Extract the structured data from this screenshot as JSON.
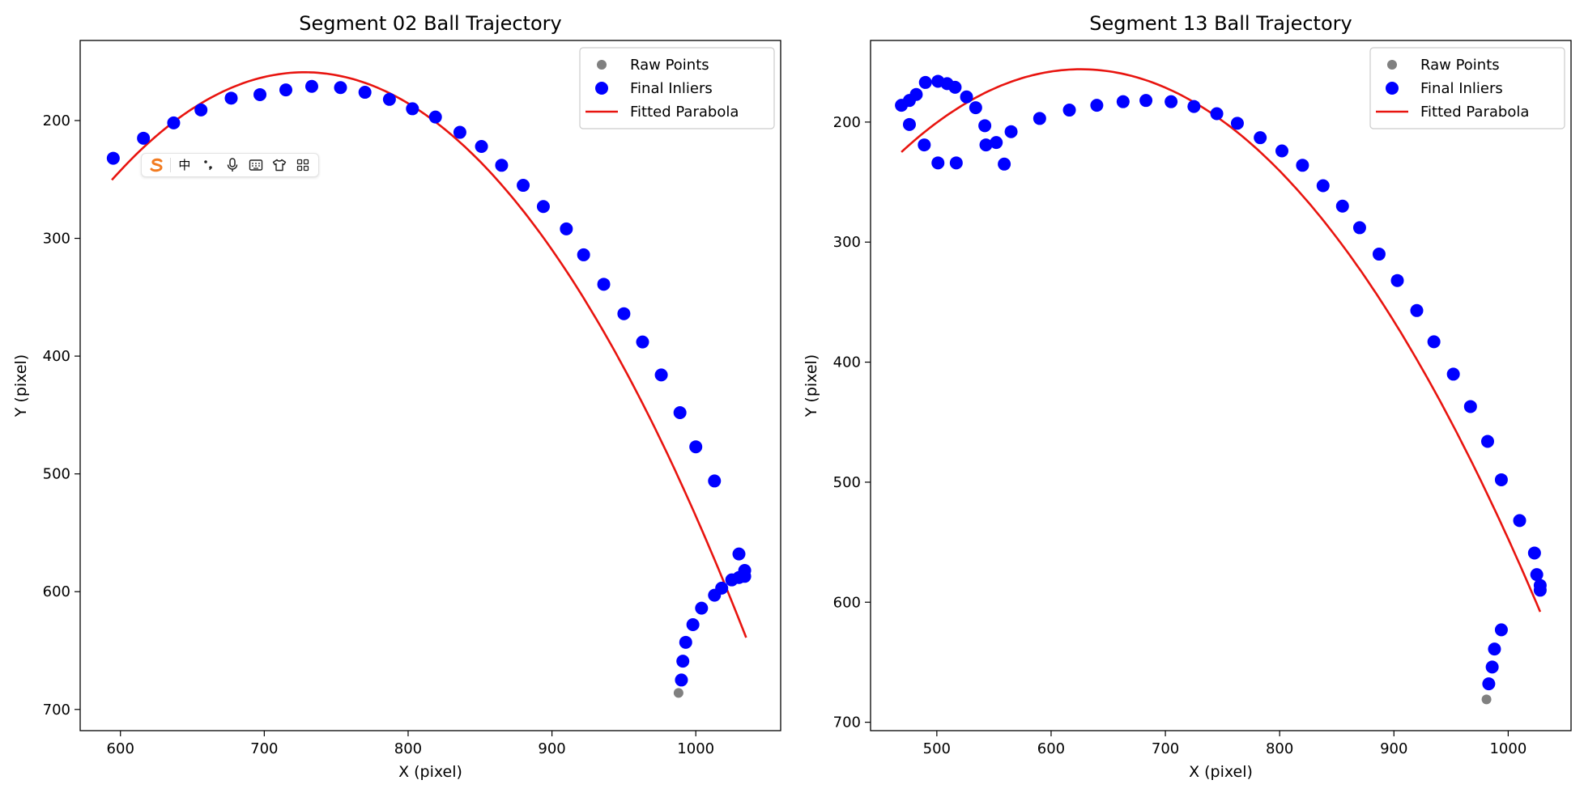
{
  "colors": {
    "raw": "#808080",
    "inliers": "#0000ff",
    "fit": "#e8140f",
    "axis": "#000000",
    "ime_accent": "#f27b21"
  },
  "ime_toolbar": {
    "icons": [
      "sogou-logo-icon",
      "chinese-mode-icon",
      "punctuation-icon",
      "microphone-icon",
      "keyboard-icon",
      "skin-shirt-icon",
      "toolbox-grid-icon"
    ],
    "mode_label": "中"
  },
  "chart_data": [
    {
      "type": "scatter",
      "title": "Segment 02 Ball Trajectory",
      "xlabel": "X (pixel)",
      "ylabel": "Y (pixel)",
      "xlim": [
        572,
        1059
      ],
      "ylim": [
        718,
        132
      ],
      "y_inverted": true,
      "xticks": [
        600,
        700,
        800,
        900,
        1000
      ],
      "yticks": [
        200,
        300,
        400,
        500,
        600,
        700
      ],
      "grid": false,
      "legend_position": "top-right",
      "legend": [
        "Raw Points",
        "Final Inliers",
        "Fitted Parabola"
      ],
      "series": [
        {
          "name": "Raw Points",
          "kind": "points",
          "x": [
            988
          ],
          "y": [
            686
          ]
        },
        {
          "name": "Final Inliers",
          "kind": "points",
          "x": [
            595,
            616,
            637,
            656,
            677,
            697,
            715,
            733,
            753,
            770,
            787,
            803,
            819,
            836,
            851,
            865,
            880,
            894,
            910,
            922,
            936,
            950,
            963,
            976,
            989,
            1000,
            1013,
            1030,
            1034,
            1034,
            1030,
            1025,
            1018,
            1013,
            1004,
            998,
            993,
            991,
            990
          ],
          "y": [
            232,
            215,
            202,
            191,
            181,
            178,
            174,
            171,
            172,
            176,
            182,
            190,
            197,
            210,
            222,
            238,
            255,
            273,
            292,
            314,
            339,
            364,
            388,
            416,
            448,
            477,
            506,
            568,
            582,
            587,
            588,
            590,
            597,
            603,
            614,
            628,
            643,
            659,
            675
          ]
        },
        {
          "name": "Fitted Parabola",
          "kind": "curve",
          "x_range": [
            594,
            1035
          ],
          "vertex": [
            728,
            159
          ],
          "y_at_x_end": 639
        }
      ]
    },
    {
      "type": "scatter",
      "title": "Segment 13 Ball Trajectory",
      "xlabel": "X (pixel)",
      "ylabel": "Y (pixel)",
      "xlim": [
        442,
        1055
      ],
      "ylim": [
        707,
        132
      ],
      "y_inverted": true,
      "xticks": [
        500,
        600,
        700,
        800,
        900,
        1000
      ],
      "yticks": [
        200,
        300,
        400,
        500,
        600,
        700
      ],
      "grid": false,
      "legend_position": "top-right",
      "legend": [
        "Raw Points",
        "Final Inliers",
        "Fitted Parabola"
      ],
      "series": [
        {
          "name": "Raw Points",
          "kind": "points",
          "x": [
            981
          ],
          "y": [
            681
          ]
        },
        {
          "name": "Final Inliers",
          "kind": "points",
          "x": [
            469,
            476,
            482,
            490,
            501,
            509,
            516,
            526,
            534,
            542,
            552,
            565,
            543,
            559,
            517,
            501,
            489,
            476,
            590,
            616,
            640,
            663,
            683,
            705,
            725,
            745,
            763,
            783,
            802,
            820,
            838,
            855,
            870,
            887,
            903,
            920,
            935,
            952,
            967,
            982,
            994,
            1010,
            1023,
            1025,
            1028,
            1028,
            994,
            988,
            986,
            983
          ],
          "y": [
            186,
            182,
            177,
            167,
            166,
            168,
            171,
            179,
            188,
            203,
            217,
            208,
            219,
            235,
            234,
            234,
            219,
            202,
            197,
            190,
            186,
            183,
            182,
            183,
            187,
            193,
            201,
            213,
            224,
            236,
            253,
            270,
            288,
            310,
            332,
            357,
            383,
            410,
            437,
            466,
            498,
            532,
            559,
            577,
            586,
            590,
            623,
            639,
            654,
            668
          ]
        },
        {
          "name": "Fitted Parabola",
          "kind": "curve",
          "x_range": [
            469,
            1028
          ],
          "vertex": [
            626,
            156
          ],
          "y_at_x_end": 608
        }
      ]
    }
  ]
}
